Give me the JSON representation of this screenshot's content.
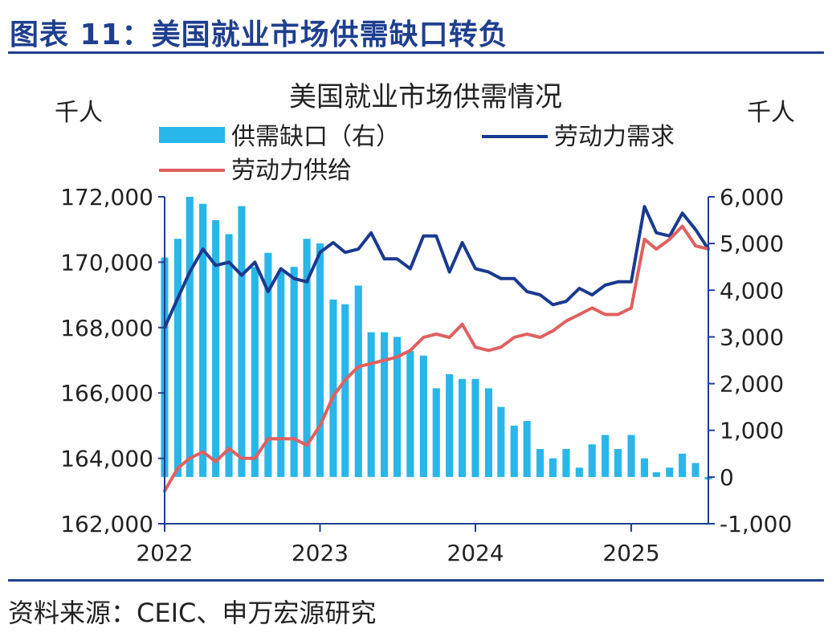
{
  "header": {
    "title": "图表 11：美国就业市场供需缺口转负"
  },
  "footer": {
    "source": "资料来源：CEIC、申万宏源研究"
  },
  "colors": {
    "bar": "#29b6e8",
    "demand": "#1a3a8f",
    "supply": "#e06060",
    "axis": "#1f3f8f",
    "rule": "#1f3f8f"
  },
  "chart_data": {
    "type": "bar+line",
    "title": "美国就业市场供需情况",
    "left_unit": "千人",
    "right_unit": "千人",
    "legend": {
      "gap": "供需缺口（右）",
      "demand": "劳动力需求",
      "supply": "劳动力供给"
    },
    "ylim_left": [
      162000,
      172000
    ],
    "ylim_right": [
      -1000,
      6000
    ],
    "yticks_left": [
      "172,000",
      "170,000",
      "168,000",
      "166,000",
      "164,000",
      "162,000"
    ],
    "yticks_right": [
      "6,000",
      "5,000",
      "4,000",
      "3,000",
      "2,000",
      "1,000",
      "0",
      "-1,000"
    ],
    "xticks": [
      "2022",
      "2023",
      "2024",
      "2025"
    ],
    "x_range": [
      "2022-01",
      "2025-07"
    ],
    "months": [
      "2022-01",
      "2022-02",
      "2022-03",
      "2022-04",
      "2022-05",
      "2022-06",
      "2022-07",
      "2022-08",
      "2022-09",
      "2022-10",
      "2022-11",
      "2022-12",
      "2023-01",
      "2023-02",
      "2023-03",
      "2023-04",
      "2023-05",
      "2023-06",
      "2023-07",
      "2023-08",
      "2023-09",
      "2023-10",
      "2023-11",
      "2023-12",
      "2024-01",
      "2024-02",
      "2024-03",
      "2024-04",
      "2024-05",
      "2024-06",
      "2024-07",
      "2024-08",
      "2024-09",
      "2024-10",
      "2024-11",
      "2024-12",
      "2025-01",
      "2025-02",
      "2025-03",
      "2025-04",
      "2025-05",
      "2025-06",
      "2025-07"
    ],
    "series": [
      {
        "name": "供需缺口（右）",
        "type": "bar",
        "axis": "right",
        "values": [
          4700,
          5100,
          6000,
          5850,
          5500,
          5200,
          5800,
          4500,
          4800,
          4400,
          4500,
          5100,
          5000,
          3800,
          3700,
          4100,
          3100,
          3100,
          3000,
          2700,
          2600,
          1900,
          2200,
          2100,
          2100,
          1900,
          1500,
          1100,
          1200,
          600,
          400,
          600,
          200,
          700,
          900,
          600,
          900,
          400,
          100,
          200,
          500,
          300,
          -50
        ],
        "color": "#29b6e8"
      },
      {
        "name": "劳动力需求",
        "type": "line",
        "axis": "left",
        "values": [
          168000,
          168900,
          169700,
          170400,
          169900,
          170000,
          169600,
          170000,
          169100,
          169800,
          169500,
          169400,
          170300,
          170600,
          170300,
          170400,
          170900,
          170100,
          170100,
          169800,
          170800,
          170800,
          169700,
          170600,
          169800,
          169700,
          169500,
          169500,
          169100,
          169000,
          168700,
          168800,
          169200,
          169000,
          169300,
          169400,
          169400,
          171700,
          170900,
          170800,
          171500,
          171000,
          170400
        ],
        "color": "#1a3a8f"
      },
      {
        "name": "劳动力供给",
        "type": "line",
        "axis": "left",
        "values": [
          163000,
          163700,
          164000,
          164200,
          163900,
          164300,
          164000,
          164000,
          164600,
          164600,
          164600,
          164400,
          165000,
          165900,
          166400,
          166800,
          166900,
          167000,
          167100,
          167300,
          167700,
          167800,
          167700,
          168100,
          167400,
          167300,
          167400,
          167700,
          167800,
          167700,
          167900,
          168200,
          168400,
          168600,
          168400,
          168400,
          168600,
          170700,
          170400,
          170700,
          171100,
          170500,
          170400
        ],
        "color": "#e06060"
      }
    ]
  }
}
